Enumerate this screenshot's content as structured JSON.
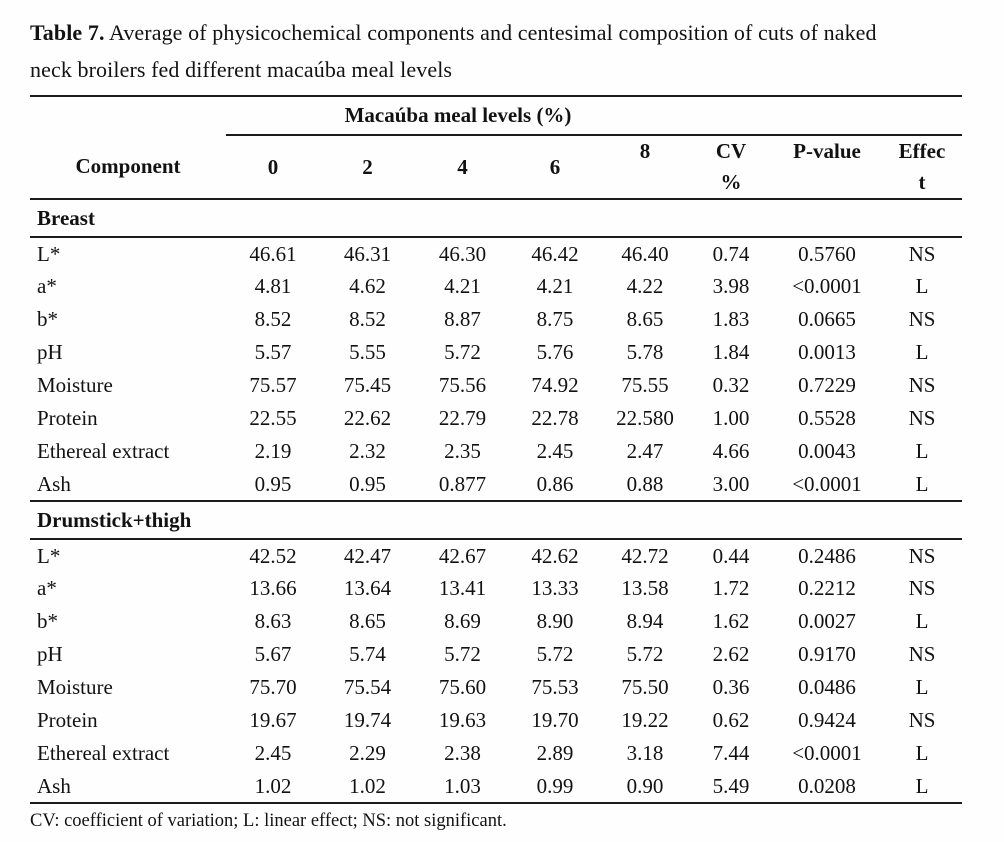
{
  "caption": {
    "label": "Table 7.",
    "line1_rest": " Average of physicochemical components and centesimal composition of cuts of naked",
    "line2": "neck broilers fed different macaúba meal levels"
  },
  "header": {
    "spanner": "Macaúba meal levels (%)",
    "columns": [
      {
        "id": "component",
        "lines": [
          "Component"
        ]
      },
      {
        "id": "level-0",
        "lines": [
          "0"
        ]
      },
      {
        "id": "level-2",
        "lines": [
          "2"
        ]
      },
      {
        "id": "level-4",
        "lines": [
          "4"
        ]
      },
      {
        "id": "level-6",
        "lines": [
          "6"
        ]
      },
      {
        "id": "level-8",
        "lines": [
          "8"
        ]
      },
      {
        "id": "cv-percent",
        "lines": [
          "CV",
          "%"
        ]
      },
      {
        "id": "p-value",
        "lines": [
          "P-value"
        ]
      },
      {
        "id": "effect",
        "lines": [
          "Effec",
          "t"
        ]
      }
    ]
  },
  "sections": [
    {
      "name": "Breast",
      "rows": [
        {
          "component": "L*",
          "values": [
            "46.61",
            "46.31",
            "46.30",
            "46.42",
            "46.40",
            "0.74",
            "0.5760",
            "NS"
          ]
        },
        {
          "component": "a*",
          "values": [
            "4.81",
            "4.62",
            "4.21",
            "4.21",
            "4.22",
            "3.98",
            "<0.0001",
            "L"
          ]
        },
        {
          "component": "b*",
          "values": [
            "8.52",
            "8.52",
            "8.87",
            "8.75",
            "8.65",
            "1.83",
            "0.0665",
            "NS"
          ]
        },
        {
          "component": "pH",
          "values": [
            "5.57",
            "5.55",
            "5.72",
            "5.76",
            "5.78",
            "1.84",
            "0.0013",
            "L"
          ]
        },
        {
          "component": "Moisture",
          "values": [
            "75.57",
            "75.45",
            "75.56",
            "74.92",
            "75.55",
            "0.32",
            "0.7229",
            "NS"
          ]
        },
        {
          "component": "Protein",
          "values": [
            "22.55",
            "22.62",
            "22.79",
            "22.78",
            "22.580",
            "1.00",
            "0.5528",
            "NS"
          ]
        },
        {
          "component": "Ethereal extract",
          "values": [
            "2.19",
            "2.32",
            "2.35",
            "2.45",
            "2.47",
            "4.66",
            "0.0043",
            "L"
          ]
        },
        {
          "component": "Ash",
          "values": [
            "0.95",
            "0.95",
            "0.877",
            "0.86",
            "0.88",
            "3.00",
            "<0.0001",
            "L"
          ]
        }
      ]
    },
    {
      "name": "Drumstick+thigh",
      "rows": [
        {
          "component": "L*",
          "values": [
            "42.52",
            "42.47",
            "42.67",
            "42.62",
            "42.72",
            "0.44",
            "0.2486",
            "NS"
          ]
        },
        {
          "component": "a*",
          "values": [
            "13.66",
            "13.64",
            "13.41",
            "13.33",
            "13.58",
            "1.72",
            "0.2212",
            "NS"
          ]
        },
        {
          "component": "b*",
          "values": [
            "8.63",
            "8.65",
            "8.69",
            "8.90",
            "8.94",
            "1.62",
            "0.0027",
            "L"
          ]
        },
        {
          "component": "pH",
          "values": [
            "5.67",
            "5.74",
            "5.72",
            "5.72",
            "5.72",
            "2.62",
            "0.9170",
            "NS"
          ]
        },
        {
          "component": "Moisture",
          "values": [
            "75.70",
            "75.54",
            "75.60",
            "75.53",
            "75.50",
            "0.36",
            "0.0486",
            "L"
          ]
        },
        {
          "component": "Protein",
          "values": [
            "19.67",
            "19.74",
            "19.63",
            "19.70",
            "19.22",
            "0.62",
            "0.9424",
            "NS"
          ]
        },
        {
          "component": "Ethereal extract",
          "values": [
            "2.45",
            "2.29",
            "2.38",
            "2.89",
            "3.18",
            "7.44",
            "<0.0001",
            "L"
          ]
        },
        {
          "component": "Ash",
          "values": [
            "1.02",
            "1.02",
            "1.03",
            "0.99",
            "0.90",
            "5.49",
            "0.0208",
            "L"
          ]
        }
      ]
    }
  ],
  "footnote": "CV: coefficient of variation; L: linear effect; NS: not significant."
}
